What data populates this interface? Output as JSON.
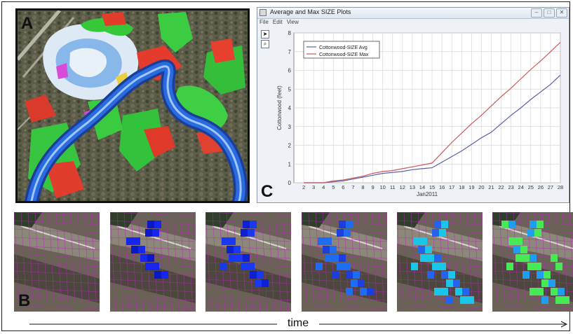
{
  "labels": {
    "a": "A",
    "b": "B",
    "c": "C"
  },
  "window": {
    "title": "Average and Max SIZE Plots",
    "menu": [
      "File",
      "Edit",
      "View"
    ],
    "buttons": {
      "minimize": "–",
      "maximize": "□",
      "close": "✕"
    },
    "icons": [
      "arrow-pointer-icon",
      "magnifier-icon"
    ]
  },
  "time_label": "time",
  "colors": {
    "avg": "#5a5ea8",
    "max": "#c85a5a",
    "river": "#1f5fd8"
  },
  "chart_data": {
    "type": "line",
    "xlabel": "Jan2011",
    "ylabel": "Cottonwood (feet)",
    "x": [
      2,
      3,
      4,
      5,
      6,
      7,
      8,
      9,
      10,
      11,
      12,
      13,
      14,
      15,
      16,
      17,
      18,
      19,
      20,
      21,
      22,
      23,
      24,
      25,
      26,
      27,
      28
    ],
    "ylim": [
      0,
      8
    ],
    "yticks": [
      0,
      1,
      2,
      3,
      4,
      5,
      6,
      7,
      8
    ],
    "grid": true,
    "legend_position": "top-left",
    "series": [
      {
        "name": "Cottonwood-SIZE Avg",
        "color": "#5a5ea8",
        "values": [
          0,
          0,
          0,
          0.05,
          0.1,
          0.2,
          0.3,
          0.4,
          0.5,
          0.55,
          0.6,
          0.7,
          0.75,
          0.8,
          1.1,
          1.4,
          1.7,
          2.05,
          2.4,
          2.7,
          3.15,
          3.6,
          4.0,
          4.45,
          4.85,
          5.25,
          5.75
        ]
      },
      {
        "name": "Cottonwood-SIZE Max",
        "color": "#c85a5a",
        "values": [
          0,
          0,
          0,
          0.1,
          0.15,
          0.25,
          0.35,
          0.5,
          0.6,
          0.65,
          0.75,
          0.85,
          0.95,
          1.05,
          1.6,
          2.15,
          2.65,
          3.15,
          3.6,
          4.1,
          4.6,
          5.05,
          5.55,
          6.05,
          6.5,
          7.0,
          7.5
        ]
      }
    ]
  },
  "panel_b": {
    "tiles": [
      {
        "fill": "none",
        "alt": "#000000"
      },
      {
        "fill": "#1626f0",
        "alt": "#0b18c8"
      },
      {
        "fill": "#1838f2",
        "alt": "#0c20d4"
      },
      {
        "fill": "#1e6cf2",
        "alt": "#1a3ee0"
      },
      {
        "fill": "#19c6ea",
        "alt": "#2462f0"
      },
      {
        "fill": "#45ea55",
        "alt": "#1e9ef0"
      }
    ]
  }
}
